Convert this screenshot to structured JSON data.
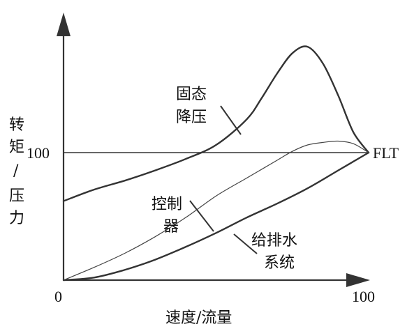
{
  "chart_data": {
    "type": "line",
    "xlabel": "速度/流量",
    "ylabel": [
      "转",
      "矩",
      "/",
      "压",
      "力"
    ],
    "x_origin_label": "0",
    "x_end_label": "100",
    "y_ref_label": "100",
    "ref_label": "FLT",
    "xlim": [
      0,
      100
    ],
    "ylim": [
      0,
      186
    ],
    "grid": false,
    "ref_value": 100,
    "series": [
      {
        "key": "soft_start",
        "name_lines": [
          "固态",
          "降压"
        ],
        "x": [
          0,
          10,
          20,
          30,
          40,
          50,
          60,
          65,
          70,
          75,
          80,
          85,
          90,
          95,
          100
        ],
        "y": [
          62,
          71,
          78,
          86,
          95,
          106,
          126,
          143,
          162,
          178,
          183,
          170,
          145,
          116,
          100
        ]
      },
      {
        "key": "controller",
        "name_lines": [
          "控制",
          "器"
        ],
        "x": [
          0,
          10,
          20,
          30,
          40,
          50,
          60,
          70,
          75,
          80,
          85,
          90,
          95,
          100
        ],
        "y": [
          0,
          10,
          21,
          34,
          49,
          66,
          80,
          94,
          101,
          106,
          108,
          109,
          107,
          100
        ]
      },
      {
        "key": "drainage",
        "name_lines": [
          "给排水",
          "系统"
        ],
        "x": [
          0,
          10,
          20,
          30,
          40,
          50,
          60,
          70,
          80,
          90,
          100
        ],
        "y": [
          0,
          2,
          8,
          16,
          26,
          37,
          49,
          60,
          72,
          86,
          100
        ]
      }
    ]
  }
}
